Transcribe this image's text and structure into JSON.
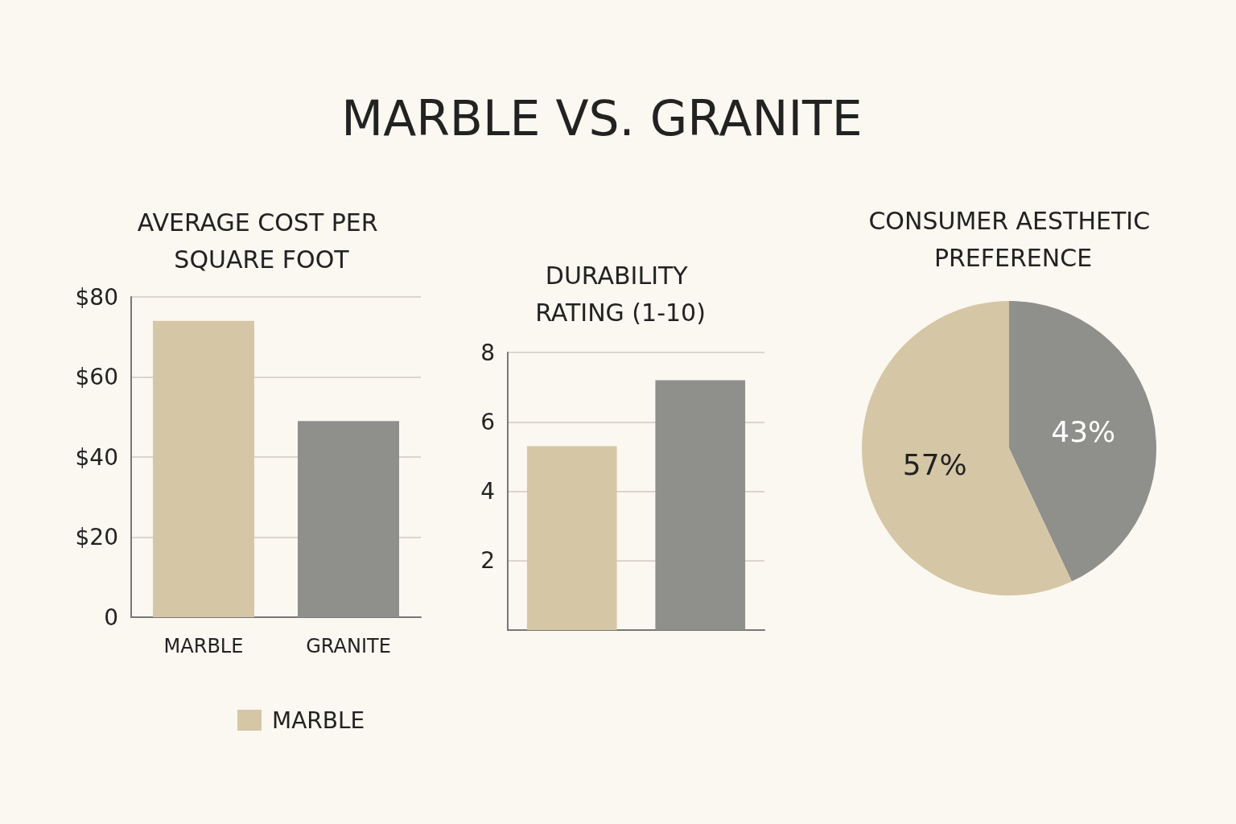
{
  "chart_data": [
    {
      "type": "bar",
      "title": "MARBLE VS. GRANITE",
      "subtitle": "AVERAGE COST PER SQUARE FOOT",
      "categories": [
        "MARBLE",
        "GRANITE"
      ],
      "series": [
        {
          "name": "MARBLE",
          "color": "#d5c6a6",
          "values": [
            74,
            null
          ]
        },
        {
          "color": "#8f8f8b",
          "values": [
            null,
            49
          ]
        }
      ],
      "ylim": [
        0,
        80
      ],
      "yticks": [
        {
          "value": 0,
          "label": "0"
        },
        {
          "value": 20,
          "label": "$20"
        },
        {
          "value": 40,
          "label": "$40"
        },
        {
          "value": 60,
          "label": "$60"
        },
        {
          "value": 80,
          "label": "$80"
        }
      ],
      "grid": "y",
      "legend": "bottom"
    },
    {
      "type": "bar",
      "title": "DURABILITY RATING (1-10)",
      "categories": [
        null,
        null
      ],
      "series": [
        {
          "color": "#d5c6a6",
          "values": [
            5.3,
            null
          ]
        },
        {
          "color": "#8f8f8b",
          "values": [
            null,
            7.2
          ]
        }
      ],
      "ylim": [
        0,
        8
      ],
      "yticks": [
        {
          "value": 0,
          "label": null
        },
        2,
        4,
        6,
        8
      ],
      "grid": "y"
    },
    {
      "type": "pie",
      "title": "CONSUMER AESTHETIC PREFERENCE",
      "categories": [
        null,
        null
      ],
      "values": [
        43,
        57
      ],
      "colors": [
        "#8f8f8b",
        "#d5c6a6"
      ],
      "value_labels": [
        "43%",
        "57%"
      ]
    }
  ]
}
